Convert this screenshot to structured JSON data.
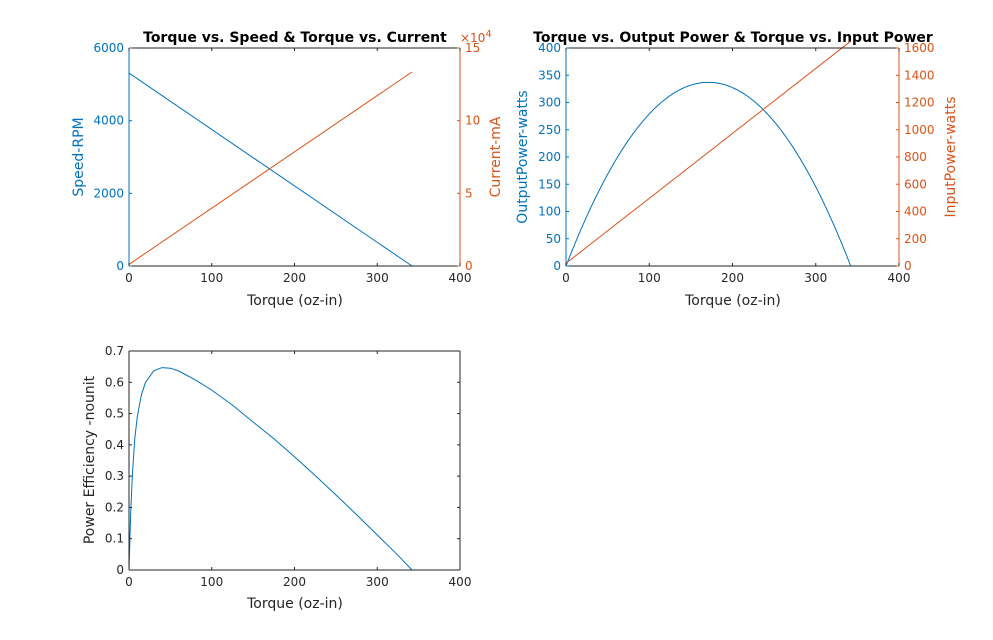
{
  "colors": {
    "blue": "#0072bd",
    "orange": "#d95319",
    "axis": "#262626",
    "background": "#ffffff"
  },
  "chart_data": [
    {
      "type": "line",
      "title": "Torque vs. Speed & Torque vs. Current",
      "xlabel": "Torque (oz-in)",
      "xlim": [
        0,
        400
      ],
      "xticks": [
        "0",
        "100",
        "200",
        "300",
        "400"
      ],
      "grid": false,
      "box": true,
      "y_left": {
        "label": "Speed-RPM",
        "lim": [
          0,
          6000
        ],
        "ticks": [
          "0",
          "2000",
          "4000",
          "6000"
        ],
        "color": "#0072bd"
      },
      "y_right": {
        "label": "Current-mA",
        "lim": [
          0,
          150000
        ],
        "ticks": [
          "0",
          "5",
          "10",
          "15"
        ],
        "exponent_label": "×10",
        "exponent_power": "4",
        "color": "#d95319"
      },
      "series": [
        {
          "axis": "left",
          "color": "#0072bd",
          "x": [
            0,
            342
          ],
          "y": [
            5310,
            0
          ]
        },
        {
          "axis": "right",
          "color": "#d95319",
          "x": [
            0,
            342
          ],
          "y": [
            1100,
            133500
          ]
        }
      ]
    },
    {
      "type": "line",
      "title": "Torque vs. Output Power & Torque vs. Input Power",
      "xlabel": "Torque (oz-in)",
      "xlim": [
        0,
        400
      ],
      "xticks": [
        "0",
        "100",
        "200",
        "300",
        "400"
      ],
      "grid": false,
      "box": true,
      "y_left": {
        "label": "OutputPower-watts",
        "lim": [
          0,
          400
        ],
        "ticks": [
          "0",
          "50",
          "100",
          "150",
          "200",
          "250",
          "300",
          "350",
          "400"
        ],
        "color": "#0072bd"
      },
      "y_right": {
        "label": "InputPower-watts",
        "lim": [
          0,
          1600
        ],
        "ticks": [
          "0",
          "200",
          "400",
          "600",
          "800",
          "1000",
          "1200",
          "1400",
          "1600"
        ],
        "color": "#d95319"
      },
      "series": [
        {
          "axis": "left",
          "color": "#0072bd",
          "function": "parabola",
          "x0": 0,
          "x1": 342,
          "peak": 337
        },
        {
          "axis": "right",
          "color": "#d95319",
          "x": [
            0,
            342
          ],
          "y": [
            20,
            1650
          ]
        }
      ]
    },
    {
      "type": "line",
      "title": "",
      "xlabel": "Torque (oz-in)",
      "xlim": [
        0,
        400
      ],
      "xticks": [
        "0",
        "100",
        "200",
        "300",
        "400"
      ],
      "grid": false,
      "box": true,
      "y_left": {
        "label": "Power Efficiency -nounit",
        "lim": [
          0,
          0.7
        ],
        "ticks": [
          "0",
          "0.1",
          "0.2",
          "0.3",
          "0.4",
          "0.5",
          "0.6",
          "0.7"
        ],
        "color": "#262626"
      },
      "series": [
        {
          "axis": "left",
          "color": "#0072bd",
          "x": [
            0,
            1,
            2,
            4,
            7,
            10,
            15,
            20,
            30,
            40,
            50,
            60,
            80,
            100,
            125,
            150,
            175,
            200,
            225,
            250,
            275,
            300,
            325,
            342
          ],
          "y": [
            0,
            0.09,
            0.18,
            0.3,
            0.42,
            0.49,
            0.56,
            0.6,
            0.637,
            0.647,
            0.645,
            0.636,
            0.608,
            0.575,
            0.527,
            0.473,
            0.42,
            0.362,
            0.302,
            0.24,
            0.177,
            0.112,
            0.047,
            0
          ]
        }
      ]
    }
  ]
}
